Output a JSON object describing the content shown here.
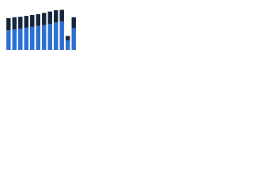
{
  "chart_data": {
    "type": "stacked-bar",
    "categories": [
      null,
      null,
      null,
      null,
      null,
      null,
      null,
      null,
      null,
      null,
      null,
      null
    ],
    "series": [
      {
        "color": "#2b6fd3",
        "values": [
          45,
          47,
          49,
          51,
          53,
          55,
          57,
          60,
          63,
          65,
          22,
          50
        ]
      },
      {
        "color": "#15253b",
        "values": [
          28,
          28,
          27,
          27,
          27,
          27,
          28,
          28,
          28,
          27,
          10,
          25
        ]
      }
    ],
    "ylim": [
      0,
      100
    ]
  }
}
